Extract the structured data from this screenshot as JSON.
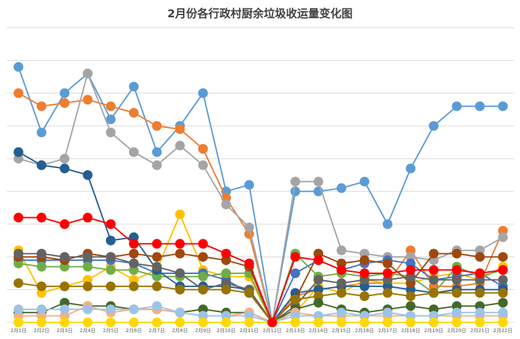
{
  "chart_data": {
    "type": "line",
    "title": "2月份各行政村厨余垃圾收运量变化图",
    "categories": [
      "2月1日",
      "2月2日",
      "2月3日",
      "2月4日",
      "2月5日",
      "2月6日",
      "2月7日",
      "2月8日",
      "2月9日",
      "2月10日",
      "2月11日",
      "2月12日",
      "2月13日",
      "2月14日",
      "2月15日",
      "2月16日",
      "2月17日",
      "2月18日",
      "2月19日",
      "2月20日",
      "2月21日",
      "2月22日"
    ],
    "ylim": [
      0,
      4.5
    ],
    "grid": true,
    "legend": "none",
    "series": [
      {
        "color": "#5b9bd5",
        "values": [
          3.9,
          2.9,
          3.5,
          3.8,
          3.1,
          3.6,
          2.6,
          3.0,
          3.5,
          2.0,
          2.1,
          0,
          2.0,
          2.0,
          2.05,
          2.15,
          1.5,
          2.35,
          3.0,
          3.3,
          3.3,
          3.3
        ]
      },
      {
        "color": "#ed7d31",
        "values": [
          3.5,
          3.3,
          3.35,
          3.4,
          3.3,
          3.2,
          3.0,
          2.95,
          2.65,
          1.9,
          1.35,
          0,
          0.4,
          0.5,
          0.55,
          0.6,
          0.6,
          1.1,
          0.55,
          0.55,
          0.6,
          1.4
        ]
      },
      {
        "color": "#a5a5a5",
        "values": [
          2.5,
          2.4,
          2.5,
          3.8,
          2.9,
          2.6,
          2.4,
          2.7,
          2.4,
          1.8,
          1.45,
          0,
          2.15,
          2.15,
          1.1,
          1.05,
          1.0,
          1.0,
          0.95,
          1.1,
          1.1,
          1.3
        ]
      },
      {
        "color": "#ffc000",
        "values": [
          1.1,
          0.45,
          0.55,
          0.65,
          0.85,
          0.65,
          0.8,
          1.65,
          0.8,
          0.7,
          0.7,
          0,
          0.15,
          0.55,
          0.45,
          0.65,
          0.6,
          0.6,
          0.7,
          0.75,
          0.65,
          0.85
        ]
      },
      {
        "color": "#4472c4",
        "values": [
          0.95,
          0.95,
          0.95,
          0.95,
          0.95,
          0.9,
          0.75,
          0.75,
          0.75,
          0.65,
          0.45,
          0,
          0.75,
          0.95,
          0.8,
          0.9,
          0.95,
          0.9,
          0.65,
          0.7,
          0.75,
          0.55
        ]
      },
      {
        "color": "#70ad47",
        "values": [
          0.9,
          0.85,
          0.85,
          0.85,
          0.8,
          0.8,
          0.7,
          0.7,
          0.7,
          0.75,
          0.75,
          0,
          1.05,
          0.7,
          0.75,
          0.7,
          0.75,
          0.7,
          0.45,
          0.85,
          0.7,
          0.8
        ]
      },
      {
        "color": "#255e91",
        "values": [
          2.6,
          2.4,
          2.35,
          2.25,
          1.25,
          1.3,
          0.8,
          0.55,
          0.55,
          0.55,
          0.5,
          0,
          0.45,
          0.5,
          0.55,
          0.55,
          0.55,
          0.5,
          0.45,
          0.5,
          0.5,
          0.5
        ]
      },
      {
        "color": "#9e480e",
        "values": [
          1.0,
          1.0,
          0.95,
          1.05,
          1.0,
          1.05,
          1.0,
          1.05,
          1.0,
          0.95,
          0.85,
          0,
          0.35,
          1.05,
          0.9,
          0.95,
          0.9,
          0.6,
          1.05,
          1.05,
          1.0,
          1.0
        ]
      },
      {
        "color": "#636363",
        "values": [
          1.05,
          1.05,
          1.0,
          1.0,
          1.0,
          0.9,
          0.85,
          0.75,
          0.5,
          0.6,
          0.5,
          0,
          0.25,
          0.65,
          0.6,
          0.65,
          0.65,
          0.7,
          0.65,
          0.65,
          0.65,
          0.65
        ]
      },
      {
        "color": "#997300",
        "values": [
          0.6,
          0.55,
          0.55,
          0.55,
          0.55,
          0.55,
          0.55,
          0.5,
          0.5,
          0.5,
          0.45,
          0,
          0.35,
          0.4,
          0.45,
          0.4,
          0.45,
          0.4,
          0.45,
          0.45,
          0.45,
          0.45
        ]
      },
      {
        "color": "#43682b",
        "values": [
          0.15,
          0.15,
          0.3,
          0.25,
          0.25,
          0.2,
          0.2,
          0.15,
          0.2,
          0.15,
          0.15,
          0,
          0.2,
          0.3,
          0.2,
          0.15,
          0.2,
          0.25,
          0.2,
          0.25,
          0.25,
          0.3
        ]
      },
      {
        "color": "#f4b183",
        "values": [
          0.1,
          0.1,
          0.1,
          0.25,
          0.15,
          0.2,
          0.2,
          0.15,
          0.1,
          0.1,
          0.15,
          0,
          0.15,
          0.1,
          0.1,
          0.1,
          0.1,
          0.1,
          0.1,
          0.1,
          0.1,
          0.1
        ]
      },
      {
        "color": "#9dc3e6",
        "values": [
          0.2,
          0.2,
          0.2,
          0.2,
          0.2,
          0.2,
          0.25,
          0.15,
          0.1,
          0.1,
          0.1,
          0,
          0.1,
          0.1,
          0.15,
          0.1,
          0.15,
          0.1,
          0.1,
          0.15,
          0.15,
          0.15
        ]
      },
      {
        "color": "#ffd700",
        "values": [
          0.0,
          0.0,
          0.0,
          0.0,
          0.0,
          0.0,
          0.0,
          0.0,
          0.0,
          0.0,
          0.0,
          0,
          0.0,
          0.0,
          0.0,
          0.0,
          0.0,
          0.0,
          0.0,
          0.0,
          0.0,
          0.0
        ]
      },
      {
        "color": "#ff0000",
        "values": [
          1.6,
          1.6,
          1.5,
          1.6,
          1.5,
          1.2,
          1.2,
          1.2,
          1.2,
          1.05,
          0.9,
          0,
          1.0,
          0.95,
          0.8,
          0.75,
          0.75,
          0.8,
          0.8,
          0.8,
          0.75,
          0.8
        ]
      }
    ]
  }
}
